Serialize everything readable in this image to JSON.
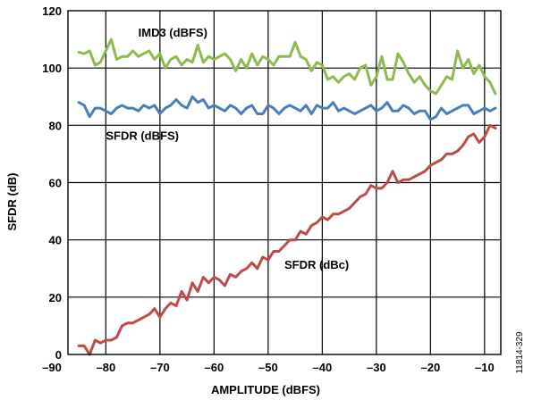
{
  "chart_data": {
    "type": "line",
    "xlabel": "AMPLITUDE (dBFS)",
    "ylabel": "SFDR (dB)",
    "xlim": [
      -87,
      -7
    ],
    "ylim": [
      0,
      120
    ],
    "x_ticks": [
      -90,
      -80,
      -70,
      -60,
      -50,
      -40,
      -30,
      -20,
      -10
    ],
    "x_tick_labels": [
      "–90",
      "–80",
      "–70",
      "–60",
      "–50",
      "–40",
      "–30",
      "–20",
      "–10"
    ],
    "y_ticks": [
      0,
      20,
      40,
      60,
      80,
      100,
      120
    ],
    "y_tick_labels": [
      "0",
      "20",
      "40",
      "60",
      "80",
      "100",
      "120"
    ],
    "grid": true,
    "figure_id": "11814-329",
    "x": [
      -85,
      -84,
      -83,
      -82,
      -81,
      -80,
      -79,
      -78,
      -77,
      -76,
      -75,
      -74,
      -73,
      -72,
      -71,
      -70,
      -69,
      -68,
      -67,
      -66,
      -65,
      -64,
      -63,
      -62,
      -61,
      -60,
      -59,
      -58,
      -57,
      -56,
      -55,
      -54,
      -53,
      -52,
      -51,
      -50,
      -49,
      -48,
      -47,
      -46,
      -45,
      -44,
      -43,
      -42,
      -41,
      -40,
      -39,
      -38,
      -37,
      -36,
      -35,
      -34,
      -33,
      -32,
      -31,
      -30,
      -29,
      -28,
      -27,
      -26,
      -25,
      -24,
      -23,
      -22,
      -21,
      -20,
      -19,
      -18,
      -17,
      -16,
      -15,
      -14,
      -13,
      -12,
      -11,
      -10,
      -9,
      -8
    ],
    "series": [
      {
        "name": "IMD3 (dBFS)",
        "color": "#8dbb4e",
        "values": [
          105.5,
          105,
          106,
          101,
          102,
          106,
          110,
          103,
          104,
          104,
          106,
          104,
          105,
          106,
          103,
          105,
          100,
          103,
          104,
          101,
          103,
          102,
          108,
          102,
          104,
          103,
          104,
          105,
          103,
          99,
          103,
          100,
          105,
          101,
          104,
          103,
          101,
          104,
          104,
          104,
          109,
          104,
          103,
          99,
          102,
          101,
          96,
          97,
          95,
          97,
          98,
          96,
          100,
          101,
          94,
          97,
          104,
          96,
          96,
          105,
          102,
          98,
          95,
          97,
          94,
          92,
          91,
          94,
          97,
          96,
          106,
          100,
          103,
          98,
          101,
          97,
          95,
          91
        ]
      },
      {
        "name": "SFDR (dBFS)",
        "color": "#4a7ebb",
        "values": [
          88,
          87,
          83,
          86,
          86,
          85,
          84,
          86,
          87,
          86,
          86,
          85,
          87,
          86,
          87,
          84,
          86,
          87,
          89,
          87,
          86,
          90,
          88,
          89,
          86,
          87,
          86,
          85,
          87,
          86,
          84,
          86,
          87,
          84,
          84,
          87,
          86,
          84,
          86,
          87,
          86,
          85,
          87,
          84,
          87,
          86,
          86,
          88,
          85,
          86,
          85,
          84,
          85,
          86,
          87,
          85,
          86,
          88,
          85,
          85,
          87,
          86,
          84,
          85,
          85,
          82,
          83,
          86,
          84,
          85,
          86,
          87,
          87,
          84,
          85,
          86,
          85,
          86
        ]
      },
      {
        "name": "SFDR (dBc)",
        "color": "#be4b48",
        "values": [
          3,
          3,
          0,
          5,
          4,
          5,
          5,
          6,
          10,
          11,
          11,
          12,
          13,
          14,
          16,
          13,
          16,
          18,
          17,
          22,
          19,
          25,
          22,
          27,
          25,
          27,
          26,
          24,
          28,
          27,
          29,
          30,
          32,
          30,
          34,
          33,
          36,
          36,
          38,
          40,
          40,
          43,
          42,
          45,
          46,
          48,
          47,
          49,
          49,
          50,
          51,
          53,
          55,
          56,
          59,
          58,
          58,
          60,
          64,
          60,
          61,
          61,
          62,
          63,
          64,
          66,
          67,
          68,
          70,
          70,
          71,
          73,
          76,
          77,
          74,
          76,
          80,
          79
        ]
      }
    ]
  }
}
